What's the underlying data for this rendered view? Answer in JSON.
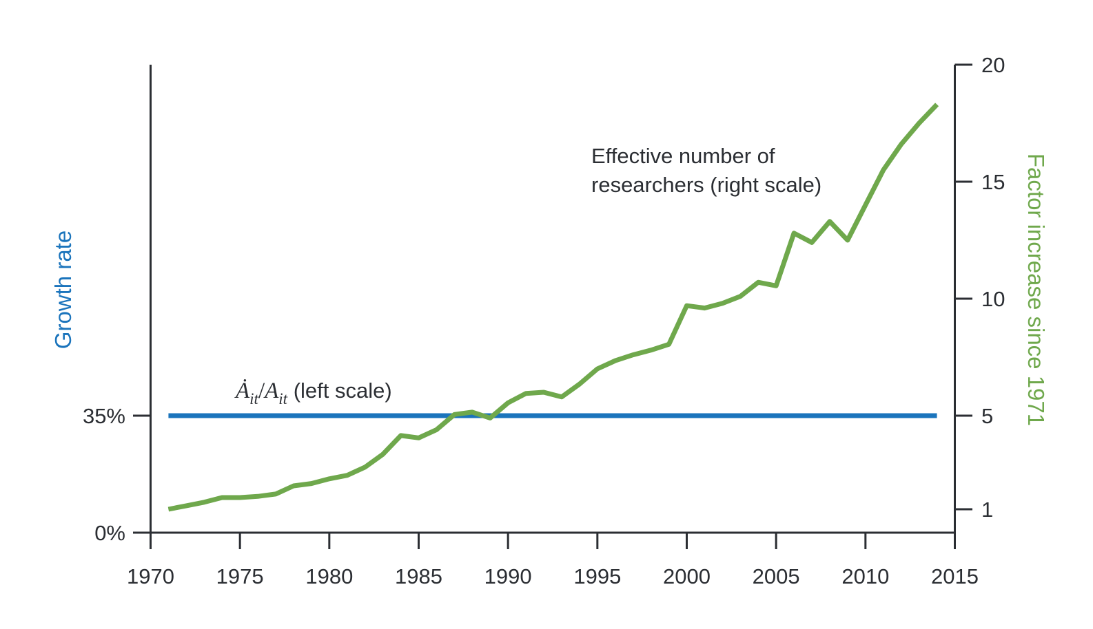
{
  "figure": {
    "background": "#ffffff",
    "text_color": "#2b2e33",
    "axis_color": "#2b2e33"
  },
  "chart_data": {
    "type": "line",
    "title": "",
    "grid": false,
    "legend_position": "none",
    "x_axis": {
      "ticks": [
        1970,
        1975,
        1980,
        1985,
        1990,
        1995,
        2000,
        2005,
        2010,
        2015
      ],
      "range": [
        1970,
        2015
      ]
    },
    "left_axis": {
      "label": "Growth rate",
      "color": "#1b74bc",
      "unit": "percent",
      "ticks": [
        {
          "label": "35%",
          "value": 35
        },
        {
          "label": "0%",
          "value": 0
        }
      ]
    },
    "right_axis": {
      "label": "Factor increase since 1971",
      "color": "#6fa84c",
      "ticks": [
        20,
        15,
        10,
        5,
        1
      ],
      "range": [
        0,
        20
      ]
    },
    "series": [
      {
        "name": "Effective number of researchers",
        "axis": "right",
        "color": "#6fa84c",
        "x": [
          1971,
          1972,
          1973,
          1974,
          1975,
          1976,
          1977,
          1978,
          1979,
          1980,
          1981,
          1982,
          1983,
          1984,
          1985,
          1986,
          1987,
          1988,
          1989,
          1990,
          1991,
          1992,
          1993,
          1994,
          1995,
          1996,
          1997,
          1998,
          1999,
          2000,
          2001,
          2002,
          2003,
          2004,
          2005,
          2006,
          2007,
          2008,
          2009,
          2010,
          2011,
          2012,
          2013,
          2014
        ],
        "values": [
          1.0,
          1.15,
          1.3,
          1.5,
          1.5,
          1.55,
          1.65,
          2.0,
          2.1,
          2.3,
          2.45,
          2.8,
          3.35,
          4.15,
          4.05,
          4.4,
          5.05,
          5.15,
          4.9,
          5.55,
          5.95,
          6.0,
          5.8,
          6.35,
          7.0,
          7.35,
          7.6,
          7.8,
          8.05,
          9.7,
          9.6,
          9.8,
          10.1,
          10.7,
          10.55,
          12.8,
          12.4,
          13.3,
          12.5,
          14.0,
          15.5,
          16.6,
          17.5,
          18.3
        ]
      },
      {
        "name": "Ȧit/Ait",
        "axis": "left",
        "color": "#1b74bc",
        "constant_percent": 35,
        "x_start": 1971,
        "x_end": 2014
      }
    ],
    "annotations": {
      "researchers": {
        "line1": "Effective number of",
        "line2": "researchers (right scale)"
      },
      "growth": {
        "a_dot": "Ȧ",
        "sub1": "it",
        "slash": "/",
        "a": "A",
        "sub2": "it",
        "suffix": " (left scale)"
      }
    }
  }
}
